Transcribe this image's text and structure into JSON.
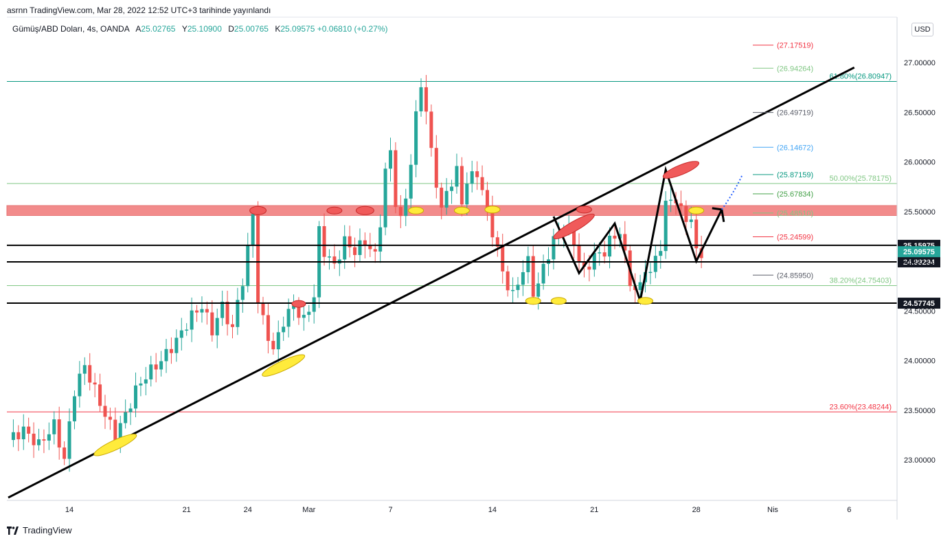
{
  "header": {
    "published": "asrnn TradingView.com, Mar 28, 2022 12:52 UTC+3 tarihinde yayınlandı"
  },
  "legend": {
    "symbol": "Gümüş/ABD Doları, 4s, OANDA",
    "open_label": "A",
    "open": "25.02765",
    "high_label": "Y",
    "high": "25.10900",
    "low_label": "D",
    "low": "25.00765",
    "close_label": "K",
    "close": "25.09575",
    "change": "+0.06810 (+0.27%)"
  },
  "currency": "USD",
  "footer": {
    "brand": "TradingView"
  },
  "colors": {
    "up": "#26a69a",
    "down": "#ef5350",
    "zone": "#f28b8b",
    "trend": "#000000",
    "fib_teal": "#089981",
    "fib_green": "#81c784",
    "fib_red": "#f23645"
  },
  "chart_data": {
    "type": "candlestick",
    "ylim": [
      22.6,
      27.3
    ],
    "y_ticks": [
      "27.00000",
      "26.50000",
      "26.00000",
      "25.50000",
      "25.00000",
      "24.50000",
      "24.00000",
      "23.50000",
      "23.00000"
    ],
    "y_tick_values": [
      27.0,
      26.5,
      26.0,
      25.5,
      25.0,
      24.5,
      24.0,
      23.5,
      23.0
    ],
    "x_ticks": [
      "14",
      "21",
      "24",
      "Mar",
      "7",
      "14",
      "21",
      "28",
      "Nis",
      "6"
    ],
    "x_tick_index": [
      12,
      35,
      47,
      59,
      75,
      95,
      115,
      135,
      150,
      165
    ],
    "candles_note": "",
    "path_points": [
      [
        0,
        23.2
      ],
      [
        3,
        23.3
      ],
      [
        6,
        23.15
      ],
      [
        9,
        23.35
      ],
      [
        11,
        23.0
      ],
      [
        13,
        23.7
      ],
      [
        15,
        23.95
      ],
      [
        17,
        23.7
      ],
      [
        19,
        23.45
      ],
      [
        21,
        23.25
      ],
      [
        23,
        23.45
      ],
      [
        25,
        23.7
      ],
      [
        27,
        23.85
      ],
      [
        30,
        24.0
      ],
      [
        33,
        24.2
      ],
      [
        36,
        24.45
      ],
      [
        38,
        24.55
      ],
      [
        40,
        24.3
      ],
      [
        42,
        24.55
      ],
      [
        44,
        24.3
      ],
      [
        45,
        24.6
      ],
      [
        46,
        24.8
      ],
      [
        47,
        25.1
      ],
      [
        48,
        25.5
      ],
      [
        49,
        24.6
      ],
      [
        50,
        24.4
      ],
      [
        52,
        24.1
      ],
      [
        54,
        24.4
      ],
      [
        56,
        24.55
      ],
      [
        58,
        24.4
      ],
      [
        60,
        24.65
      ],
      [
        61,
        25.3
      ],
      [
        62,
        25.1
      ],
      [
        64,
        24.95
      ],
      [
        66,
        25.2
      ],
      [
        68,
        25.1
      ],
      [
        70,
        25.2
      ],
      [
        72,
        25.05
      ],
      [
        73,
        25.4
      ],
      [
        74,
        25.9
      ],
      [
        75,
        26.1
      ],
      [
        76,
        25.6
      ],
      [
        77,
        25.4
      ],
      [
        78,
        25.65
      ],
      [
        79,
        26.0
      ],
      [
        80,
        26.45
      ],
      [
        81,
        26.8
      ],
      [
        82,
        26.5
      ],
      [
        83,
        26.1
      ],
      [
        84,
        25.8
      ],
      [
        85,
        25.5
      ],
      [
        86,
        25.7
      ],
      [
        88,
        25.9
      ],
      [
        89,
        25.6
      ],
      [
        90,
        25.8
      ],
      [
        92,
        25.9
      ],
      [
        94,
        25.5
      ],
      [
        95,
        25.3
      ],
      [
        96,
        25.1
      ],
      [
        97,
        24.9
      ],
      [
        98,
        24.75
      ],
      [
        99,
        24.65
      ],
      [
        100,
        24.8
      ],
      [
        102,
        25.0
      ],
      [
        103,
        24.7
      ],
      [
        104,
        24.75
      ],
      [
        105,
        24.95
      ],
      [
        107,
        25.2
      ],
      [
        109,
        25.35
      ],
      [
        111,
        25.2
      ],
      [
        112,
        25.0
      ],
      [
        113,
        24.9
      ],
      [
        115,
        25.05
      ],
      [
        117,
        25.1
      ],
      [
        118,
        25.2
      ],
      [
        120,
        25.3
      ],
      [
        121,
        25.05
      ],
      [
        122,
        24.8
      ],
      [
        123,
        24.7
      ],
      [
        124,
        24.75
      ],
      [
        125,
        24.95
      ],
      [
        126,
        24.85
      ],
      [
        127,
        25.05
      ],
      [
        128,
        25.15
      ],
      [
        129,
        25.55
      ],
      [
        130,
        25.65
      ],
      [
        131,
        25.6
      ],
      [
        132,
        25.5
      ],
      [
        133,
        25.45
      ],
      [
        134,
        25.4
      ],
      [
        135,
        25.1
      ],
      [
        136,
        25.09
      ]
    ],
    "horizontal_lines": [
      {
        "value": 25.15975,
        "label": "25.15975",
        "type": "price"
      },
      {
        "value": 24.99294,
        "label": "24.99294",
        "type": "price"
      },
      {
        "value": 24.57745,
        "label": "24.57745",
        "type": "price"
      }
    ],
    "last_price": {
      "value": 25.09575,
      "label": "25.09575"
    },
    "resistance_zone": [
      25.46,
      25.56
    ],
    "fib_levels": [
      {
        "value": 26.8094,
        "label": "61.80%(26.80947)",
        "color": "#089981"
      },
      {
        "value": 25.78175,
        "label": "50.00%(25.78175)",
        "color": "#81c784"
      },
      {
        "value": 24.75403,
        "label": "38.20%(24.75403)",
        "color": "#81c784"
      },
      {
        "value": 23.48244,
        "label": "23.60%(23.48244)",
        "color": "#f23645"
      }
    ],
    "projection_levels": [
      {
        "value": 27.17519,
        "label": "(27.17519)",
        "color": "#f23645"
      },
      {
        "value": 26.94264,
        "label": "(26.94264)",
        "color": "#81c784"
      },
      {
        "value": 26.49719,
        "label": "(26.49719)",
        "color": "#5d606b"
      },
      {
        "value": 26.14672,
        "label": "(26.14672)",
        "color": "#42a5f5"
      },
      {
        "value": 25.87159,
        "label": "(25.87159)",
        "color": "#089981"
      },
      {
        "value": 25.67834,
        "label": "(25.67834)",
        "color": "#43a047"
      },
      {
        "value": 25.4851,
        "label": "(25.48510)",
        "color": "#81c784"
      },
      {
        "value": 25.24599,
        "label": "(25.24599)",
        "color": "#f23645"
      },
      {
        "value": 24.8595,
        "label": "(24.85950)",
        "color": "#5d606b"
      }
    ],
    "trend_line": [
      [
        0,
        22.62
      ],
      [
        166,
        26.95
      ]
    ],
    "zigzag": [
      [
        107,
        25.45
      ],
      [
        112,
        24.88
      ],
      [
        119,
        25.38
      ],
      [
        124,
        24.6
      ],
      [
        129,
        25.92
      ],
      [
        135,
        25.0
      ],
      [
        140,
        25.52
      ]
    ]
  }
}
